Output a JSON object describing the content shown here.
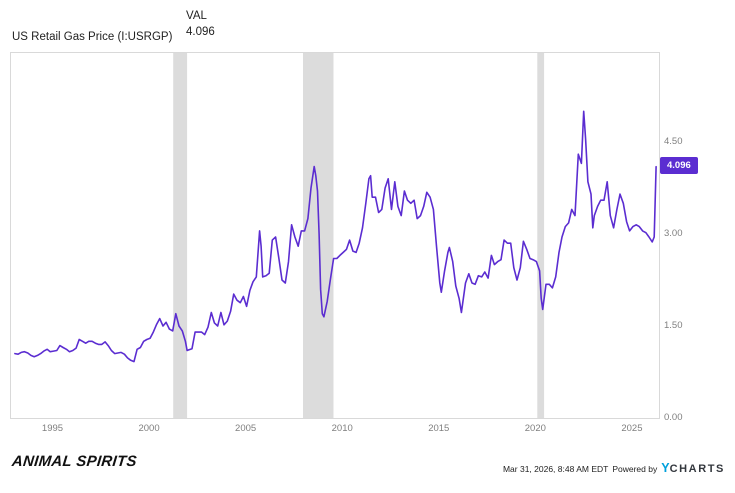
{
  "header": {
    "title": "US Retail Gas Price (I:USRGP)",
    "legend_label": "VAL",
    "legend_value": "4.096"
  },
  "badge": {
    "value": "4.096"
  },
  "footer": {
    "brand": "ANIMAL SPIRITS",
    "timestamp": "Mar 31, 2026, 8:48 AM EDT",
    "powered_by": "Powered by",
    "logo_y": "Y",
    "logo_charts": "CHARTS"
  },
  "colors": {
    "accent_purple": "#5B2DD1",
    "band_gray": "#dcdcdc",
    "border_gray": "#d9d9d9",
    "axis_text": "#7f7f7f",
    "ycharts_blue": "#00A0DC"
  },
  "chart_data": {
    "type": "line",
    "title": "US Retail Gas Price (I:USRGP)",
    "ylabel": "",
    "xlabel": "",
    "grid": false,
    "legend_position": "top",
    "x_domain": [
      1992.8,
      2026.35
    ],
    "y_domain": [
      0,
      5.95
    ],
    "y_ticks": [
      {
        "value": 0.0,
        "label": "0.00"
      },
      {
        "value": 1.5,
        "label": "1.50"
      },
      {
        "value": 3.0,
        "label": "3.00"
      },
      {
        "value": 4.5,
        "label": "4.50"
      }
    ],
    "x_ticks": [
      {
        "value": 1995,
        "label": "1995"
      },
      {
        "value": 2000,
        "label": "2000"
      },
      {
        "value": 2005,
        "label": "2005"
      },
      {
        "value": 2010,
        "label": "2010"
      },
      {
        "value": 2015,
        "label": "2015"
      },
      {
        "value": 2020,
        "label": "2020"
      },
      {
        "value": 2025,
        "label": "2025"
      }
    ],
    "recession_bands": [
      [
        2001.2,
        2001.92
      ],
      [
        2007.92,
        2009.5
      ],
      [
        2020.05,
        2020.4
      ]
    ],
    "last_value": 4.096,
    "line_color": "#5B2DD1",
    "band_color": "#dcdcdc",
    "series": [
      {
        "name": "US Retail Gas Price",
        "points": [
          [
            1993.0,
            1.05
          ],
          [
            1993.17,
            1.04
          ],
          [
            1993.33,
            1.07
          ],
          [
            1993.5,
            1.08
          ],
          [
            1993.67,
            1.06
          ],
          [
            1993.83,
            1.02
          ],
          [
            1994.0,
            1.0
          ],
          [
            1994.17,
            1.02
          ],
          [
            1994.33,
            1.05
          ],
          [
            1994.5,
            1.09
          ],
          [
            1994.67,
            1.12
          ],
          [
            1994.83,
            1.08
          ],
          [
            1995.0,
            1.09
          ],
          [
            1995.17,
            1.1
          ],
          [
            1995.33,
            1.18
          ],
          [
            1995.5,
            1.15
          ],
          [
            1995.67,
            1.12
          ],
          [
            1995.83,
            1.08
          ],
          [
            1996.0,
            1.1
          ],
          [
            1996.17,
            1.14
          ],
          [
            1996.33,
            1.28
          ],
          [
            1996.5,
            1.25
          ],
          [
            1996.67,
            1.22
          ],
          [
            1996.83,
            1.25
          ],
          [
            1997.0,
            1.25
          ],
          [
            1997.17,
            1.22
          ],
          [
            1997.33,
            1.2
          ],
          [
            1997.5,
            1.2
          ],
          [
            1997.67,
            1.24
          ],
          [
            1997.83,
            1.18
          ],
          [
            1998.0,
            1.1
          ],
          [
            1998.17,
            1.05
          ],
          [
            1998.33,
            1.06
          ],
          [
            1998.5,
            1.07
          ],
          [
            1998.67,
            1.04
          ],
          [
            1998.83,
            0.98
          ],
          [
            1999.0,
            0.94
          ],
          [
            1999.17,
            0.92
          ],
          [
            1999.33,
            1.12
          ],
          [
            1999.5,
            1.15
          ],
          [
            1999.67,
            1.25
          ],
          [
            1999.83,
            1.28
          ],
          [
            2000.0,
            1.3
          ],
          [
            2000.17,
            1.4
          ],
          [
            2000.33,
            1.52
          ],
          [
            2000.5,
            1.62
          ],
          [
            2000.67,
            1.5
          ],
          [
            2000.83,
            1.56
          ],
          [
            2001.0,
            1.45
          ],
          [
            2001.17,
            1.42
          ],
          [
            2001.33,
            1.7
          ],
          [
            2001.5,
            1.5
          ],
          [
            2001.67,
            1.42
          ],
          [
            2001.83,
            1.25
          ],
          [
            2001.92,
            1.1
          ],
          [
            2002.0,
            1.11
          ],
          [
            2002.17,
            1.13
          ],
          [
            2002.33,
            1.4
          ],
          [
            2002.5,
            1.4
          ],
          [
            2002.67,
            1.4
          ],
          [
            2002.83,
            1.36
          ],
          [
            2003.0,
            1.48
          ],
          [
            2003.17,
            1.72
          ],
          [
            2003.33,
            1.55
          ],
          [
            2003.5,
            1.5
          ],
          [
            2003.67,
            1.72
          ],
          [
            2003.83,
            1.52
          ],
          [
            2004.0,
            1.58
          ],
          [
            2004.17,
            1.74
          ],
          [
            2004.33,
            2.02
          ],
          [
            2004.5,
            1.92
          ],
          [
            2004.67,
            1.88
          ],
          [
            2004.83,
            1.98
          ],
          [
            2005.0,
            1.82
          ],
          [
            2005.17,
            2.08
          ],
          [
            2005.33,
            2.22
          ],
          [
            2005.5,
            2.3
          ],
          [
            2005.67,
            3.05
          ],
          [
            2005.75,
            2.8
          ],
          [
            2005.83,
            2.3
          ],
          [
            2006.0,
            2.32
          ],
          [
            2006.17,
            2.36
          ],
          [
            2006.33,
            2.9
          ],
          [
            2006.5,
            2.95
          ],
          [
            2006.67,
            2.6
          ],
          [
            2006.83,
            2.25
          ],
          [
            2007.0,
            2.2
          ],
          [
            2007.17,
            2.55
          ],
          [
            2007.33,
            3.15
          ],
          [
            2007.5,
            2.95
          ],
          [
            2007.67,
            2.8
          ],
          [
            2007.83,
            3.05
          ],
          [
            2008.0,
            3.05
          ],
          [
            2008.17,
            3.25
          ],
          [
            2008.33,
            3.75
          ],
          [
            2008.5,
            4.1
          ],
          [
            2008.58,
            3.95
          ],
          [
            2008.67,
            3.7
          ],
          [
            2008.75,
            3.0
          ],
          [
            2008.83,
            2.1
          ],
          [
            2008.92,
            1.7
          ],
          [
            2009.0,
            1.65
          ],
          [
            2009.17,
            1.9
          ],
          [
            2009.33,
            2.25
          ],
          [
            2009.5,
            2.6
          ],
          [
            2009.67,
            2.6
          ],
          [
            2009.83,
            2.65
          ],
          [
            2010.0,
            2.7
          ],
          [
            2010.17,
            2.75
          ],
          [
            2010.33,
            2.9
          ],
          [
            2010.5,
            2.72
          ],
          [
            2010.67,
            2.7
          ],
          [
            2010.83,
            2.85
          ],
          [
            2011.0,
            3.1
          ],
          [
            2011.17,
            3.5
          ],
          [
            2011.33,
            3.9
          ],
          [
            2011.42,
            3.95
          ],
          [
            2011.5,
            3.6
          ],
          [
            2011.67,
            3.6
          ],
          [
            2011.83,
            3.35
          ],
          [
            2012.0,
            3.4
          ],
          [
            2012.17,
            3.75
          ],
          [
            2012.33,
            3.9
          ],
          [
            2012.5,
            3.4
          ],
          [
            2012.67,
            3.85
          ],
          [
            2012.83,
            3.45
          ],
          [
            2013.0,
            3.3
          ],
          [
            2013.17,
            3.7
          ],
          [
            2013.33,
            3.55
          ],
          [
            2013.5,
            3.5
          ],
          [
            2013.67,
            3.55
          ],
          [
            2013.83,
            3.25
          ],
          [
            2014.0,
            3.3
          ],
          [
            2014.17,
            3.45
          ],
          [
            2014.33,
            3.68
          ],
          [
            2014.5,
            3.6
          ],
          [
            2014.67,
            3.4
          ],
          [
            2014.83,
            2.8
          ],
          [
            2015.0,
            2.2
          ],
          [
            2015.08,
            2.05
          ],
          [
            2015.25,
            2.4
          ],
          [
            2015.42,
            2.7
          ],
          [
            2015.5,
            2.78
          ],
          [
            2015.67,
            2.55
          ],
          [
            2015.83,
            2.15
          ],
          [
            2016.0,
            1.95
          ],
          [
            2016.12,
            1.72
          ],
          [
            2016.33,
            2.2
          ],
          [
            2016.5,
            2.35
          ],
          [
            2016.67,
            2.2
          ],
          [
            2016.83,
            2.18
          ],
          [
            2017.0,
            2.32
          ],
          [
            2017.17,
            2.3
          ],
          [
            2017.33,
            2.38
          ],
          [
            2017.5,
            2.28
          ],
          [
            2017.67,
            2.65
          ],
          [
            2017.83,
            2.5
          ],
          [
            2018.0,
            2.55
          ],
          [
            2018.17,
            2.58
          ],
          [
            2018.33,
            2.9
          ],
          [
            2018.5,
            2.85
          ],
          [
            2018.67,
            2.85
          ],
          [
            2018.83,
            2.45
          ],
          [
            2019.0,
            2.25
          ],
          [
            2019.17,
            2.45
          ],
          [
            2019.33,
            2.88
          ],
          [
            2019.5,
            2.75
          ],
          [
            2019.67,
            2.6
          ],
          [
            2019.83,
            2.58
          ],
          [
            2020.0,
            2.55
          ],
          [
            2020.17,
            2.4
          ],
          [
            2020.25,
            1.95
          ],
          [
            2020.33,
            1.77
          ],
          [
            2020.5,
            2.18
          ],
          [
            2020.67,
            2.18
          ],
          [
            2020.83,
            2.12
          ],
          [
            2021.0,
            2.3
          ],
          [
            2021.17,
            2.7
          ],
          [
            2021.33,
            2.95
          ],
          [
            2021.5,
            3.12
          ],
          [
            2021.67,
            3.18
          ],
          [
            2021.83,
            3.4
          ],
          [
            2022.0,
            3.3
          ],
          [
            2022.17,
            4.3
          ],
          [
            2022.33,
            4.15
          ],
          [
            2022.45,
            5.0
          ],
          [
            2022.55,
            4.55
          ],
          [
            2022.67,
            3.85
          ],
          [
            2022.83,
            3.65
          ],
          [
            2022.92,
            3.1
          ],
          [
            2023.0,
            3.3
          ],
          [
            2023.17,
            3.45
          ],
          [
            2023.33,
            3.55
          ],
          [
            2023.5,
            3.55
          ],
          [
            2023.67,
            3.85
          ],
          [
            2023.83,
            3.3
          ],
          [
            2024.0,
            3.1
          ],
          [
            2024.17,
            3.4
          ],
          [
            2024.33,
            3.65
          ],
          [
            2024.5,
            3.5
          ],
          [
            2024.67,
            3.2
          ],
          [
            2024.83,
            3.05
          ],
          [
            2025.0,
            3.12
          ],
          [
            2025.17,
            3.15
          ],
          [
            2025.33,
            3.12
          ],
          [
            2025.5,
            3.05
          ],
          [
            2025.67,
            3.02
          ],
          [
            2025.83,
            2.95
          ],
          [
            2026.0,
            2.87
          ],
          [
            2026.1,
            2.95
          ],
          [
            2026.2,
            4.096
          ]
        ]
      }
    ]
  }
}
